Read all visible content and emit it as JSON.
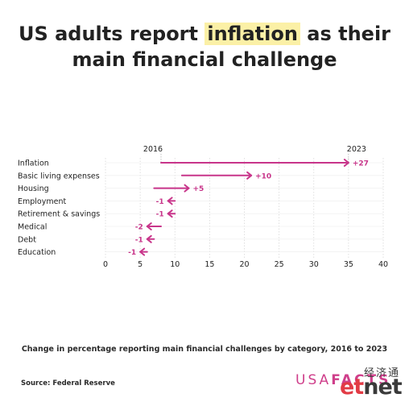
{
  "title": {
    "before": "US adults report ",
    "highlight": "inflation",
    "after": " as their",
    "line2": "main financial challenge"
  },
  "caption": "Change in percentage reporting main financial challenges by category, 2016 to 2023",
  "source": "Source: Federal Reserve",
  "logo": {
    "part1": "USA",
    "part2": "FACTS"
  },
  "watermark": {
    "cn": "经济通",
    "et": "et",
    "net": "net"
  },
  "colors": {
    "accent": "#c8358a",
    "grid": "#d8d8d8",
    "text": "#222222"
  },
  "chart_data": {
    "type": "arrow-dumbbell",
    "series_labels": {
      "start": "2016",
      "end": "2023"
    },
    "xlim": [
      0,
      40
    ],
    "x_ticks": [
      0,
      5,
      10,
      15,
      20,
      25,
      30,
      35,
      40
    ],
    "x_tick_labels": [
      "0",
      "5",
      "10",
      "15",
      "20",
      "25",
      "30",
      "35",
      "40"
    ],
    "grid": true,
    "rows": [
      {
        "category": "Inflation",
        "start": 8,
        "end": 35,
        "change_label": "+27"
      },
      {
        "category": "Basic living expenses",
        "start": 11,
        "end": 21,
        "change_label": "+10"
      },
      {
        "category": "Housing",
        "start": 7,
        "end": 12,
        "change_label": "+5"
      },
      {
        "category": "Employment",
        "start": 10,
        "end": 9,
        "change_label": "-1"
      },
      {
        "category": "Retirement & savings",
        "start": 10,
        "end": 9,
        "change_label": "-1"
      },
      {
        "category": "Medical",
        "start": 8,
        "end": 6,
        "change_label": "-2"
      },
      {
        "category": "Debt",
        "start": 7,
        "end": 6,
        "change_label": "-1"
      },
      {
        "category": "Education",
        "start": 6,
        "end": 5,
        "change_label": "-1"
      }
    ]
  }
}
